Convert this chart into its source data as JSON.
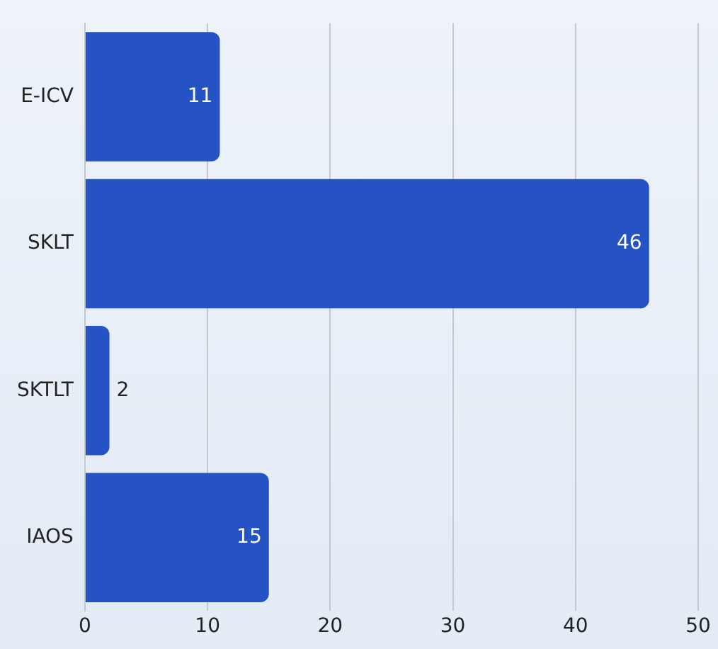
{
  "chart_data": {
    "type": "bar",
    "orientation": "horizontal",
    "categories": [
      "E-ICV",
      "SKLT",
      "SKTLT",
      "IAOS"
    ],
    "values": [
      11,
      46,
      2,
      15
    ],
    "color": "#2653c4",
    "xlim": [
      0,
      50
    ],
    "xticks": [
      0,
      10,
      20,
      30,
      40,
      50
    ],
    "grid": "x",
    "data_labels": true,
    "legend": false
  }
}
